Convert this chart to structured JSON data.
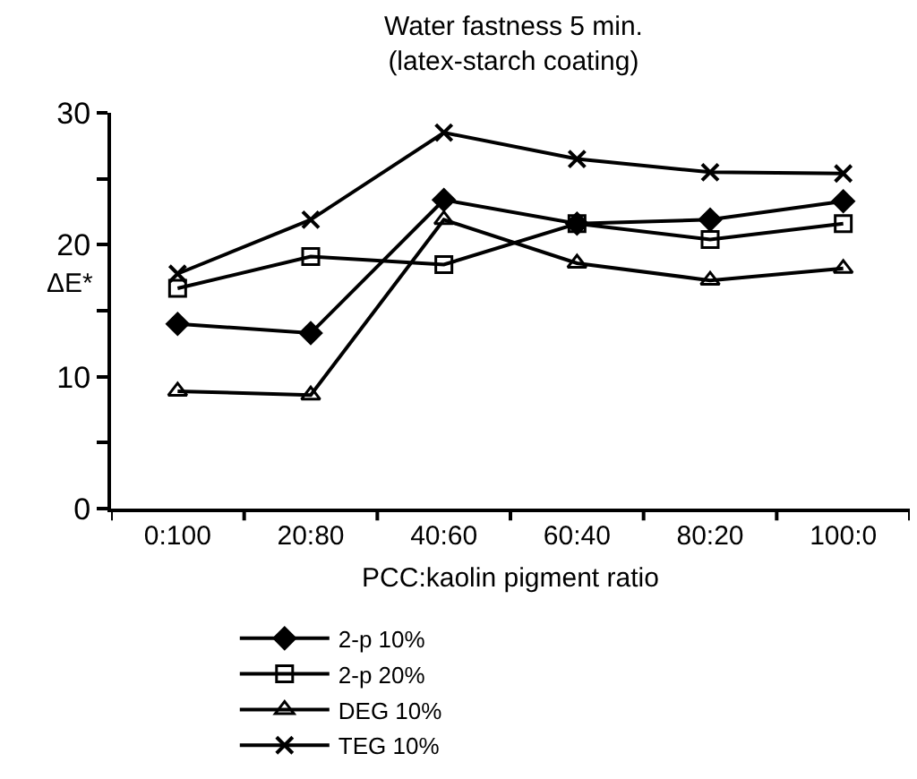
{
  "chart_data": {
    "type": "line",
    "title": "Water fastness 5 min.\n(latex-starch coating)",
    "xlabel": "PCC:kaolin pigment ratio",
    "ylabel": "ΔE*",
    "categories": [
      "0:100",
      "20:80",
      "40:60",
      "60:40",
      "80:20",
      "100:0"
    ],
    "series": [
      {
        "name": "2-p 10%",
        "color": "#000000",
        "marker": "diamond",
        "values": [
          14.0,
          13.3,
          23.4,
          21.6,
          21.9,
          23.3
        ]
      },
      {
        "name": "2-p 20%",
        "color": "#000000",
        "marker": "square",
        "values": [
          16.7,
          19.1,
          18.5,
          21.6,
          20.4,
          21.6
        ]
      },
      {
        "name": "DEG 10%",
        "color": "#000000",
        "marker": "triangle",
        "values": [
          8.9,
          8.6,
          21.9,
          18.6,
          17.3,
          18.2
        ]
      },
      {
        "name": "TEG 10%",
        "color": "#000000",
        "marker": "cross",
        "values": [
          17.8,
          21.9,
          28.5,
          26.5,
          25.5,
          25.4
        ]
      }
    ],
    "ylim": [
      0,
      30
    ],
    "yticks": [
      0,
      {
        "value": 5,
        "label": null
      },
      10,
      {
        "value": 15,
        "label": null
      },
      20,
      {
        "value": 25,
        "label": null
      },
      30
    ],
    "grid": false,
    "legend": "bottom",
    "line_style": "solid"
  }
}
